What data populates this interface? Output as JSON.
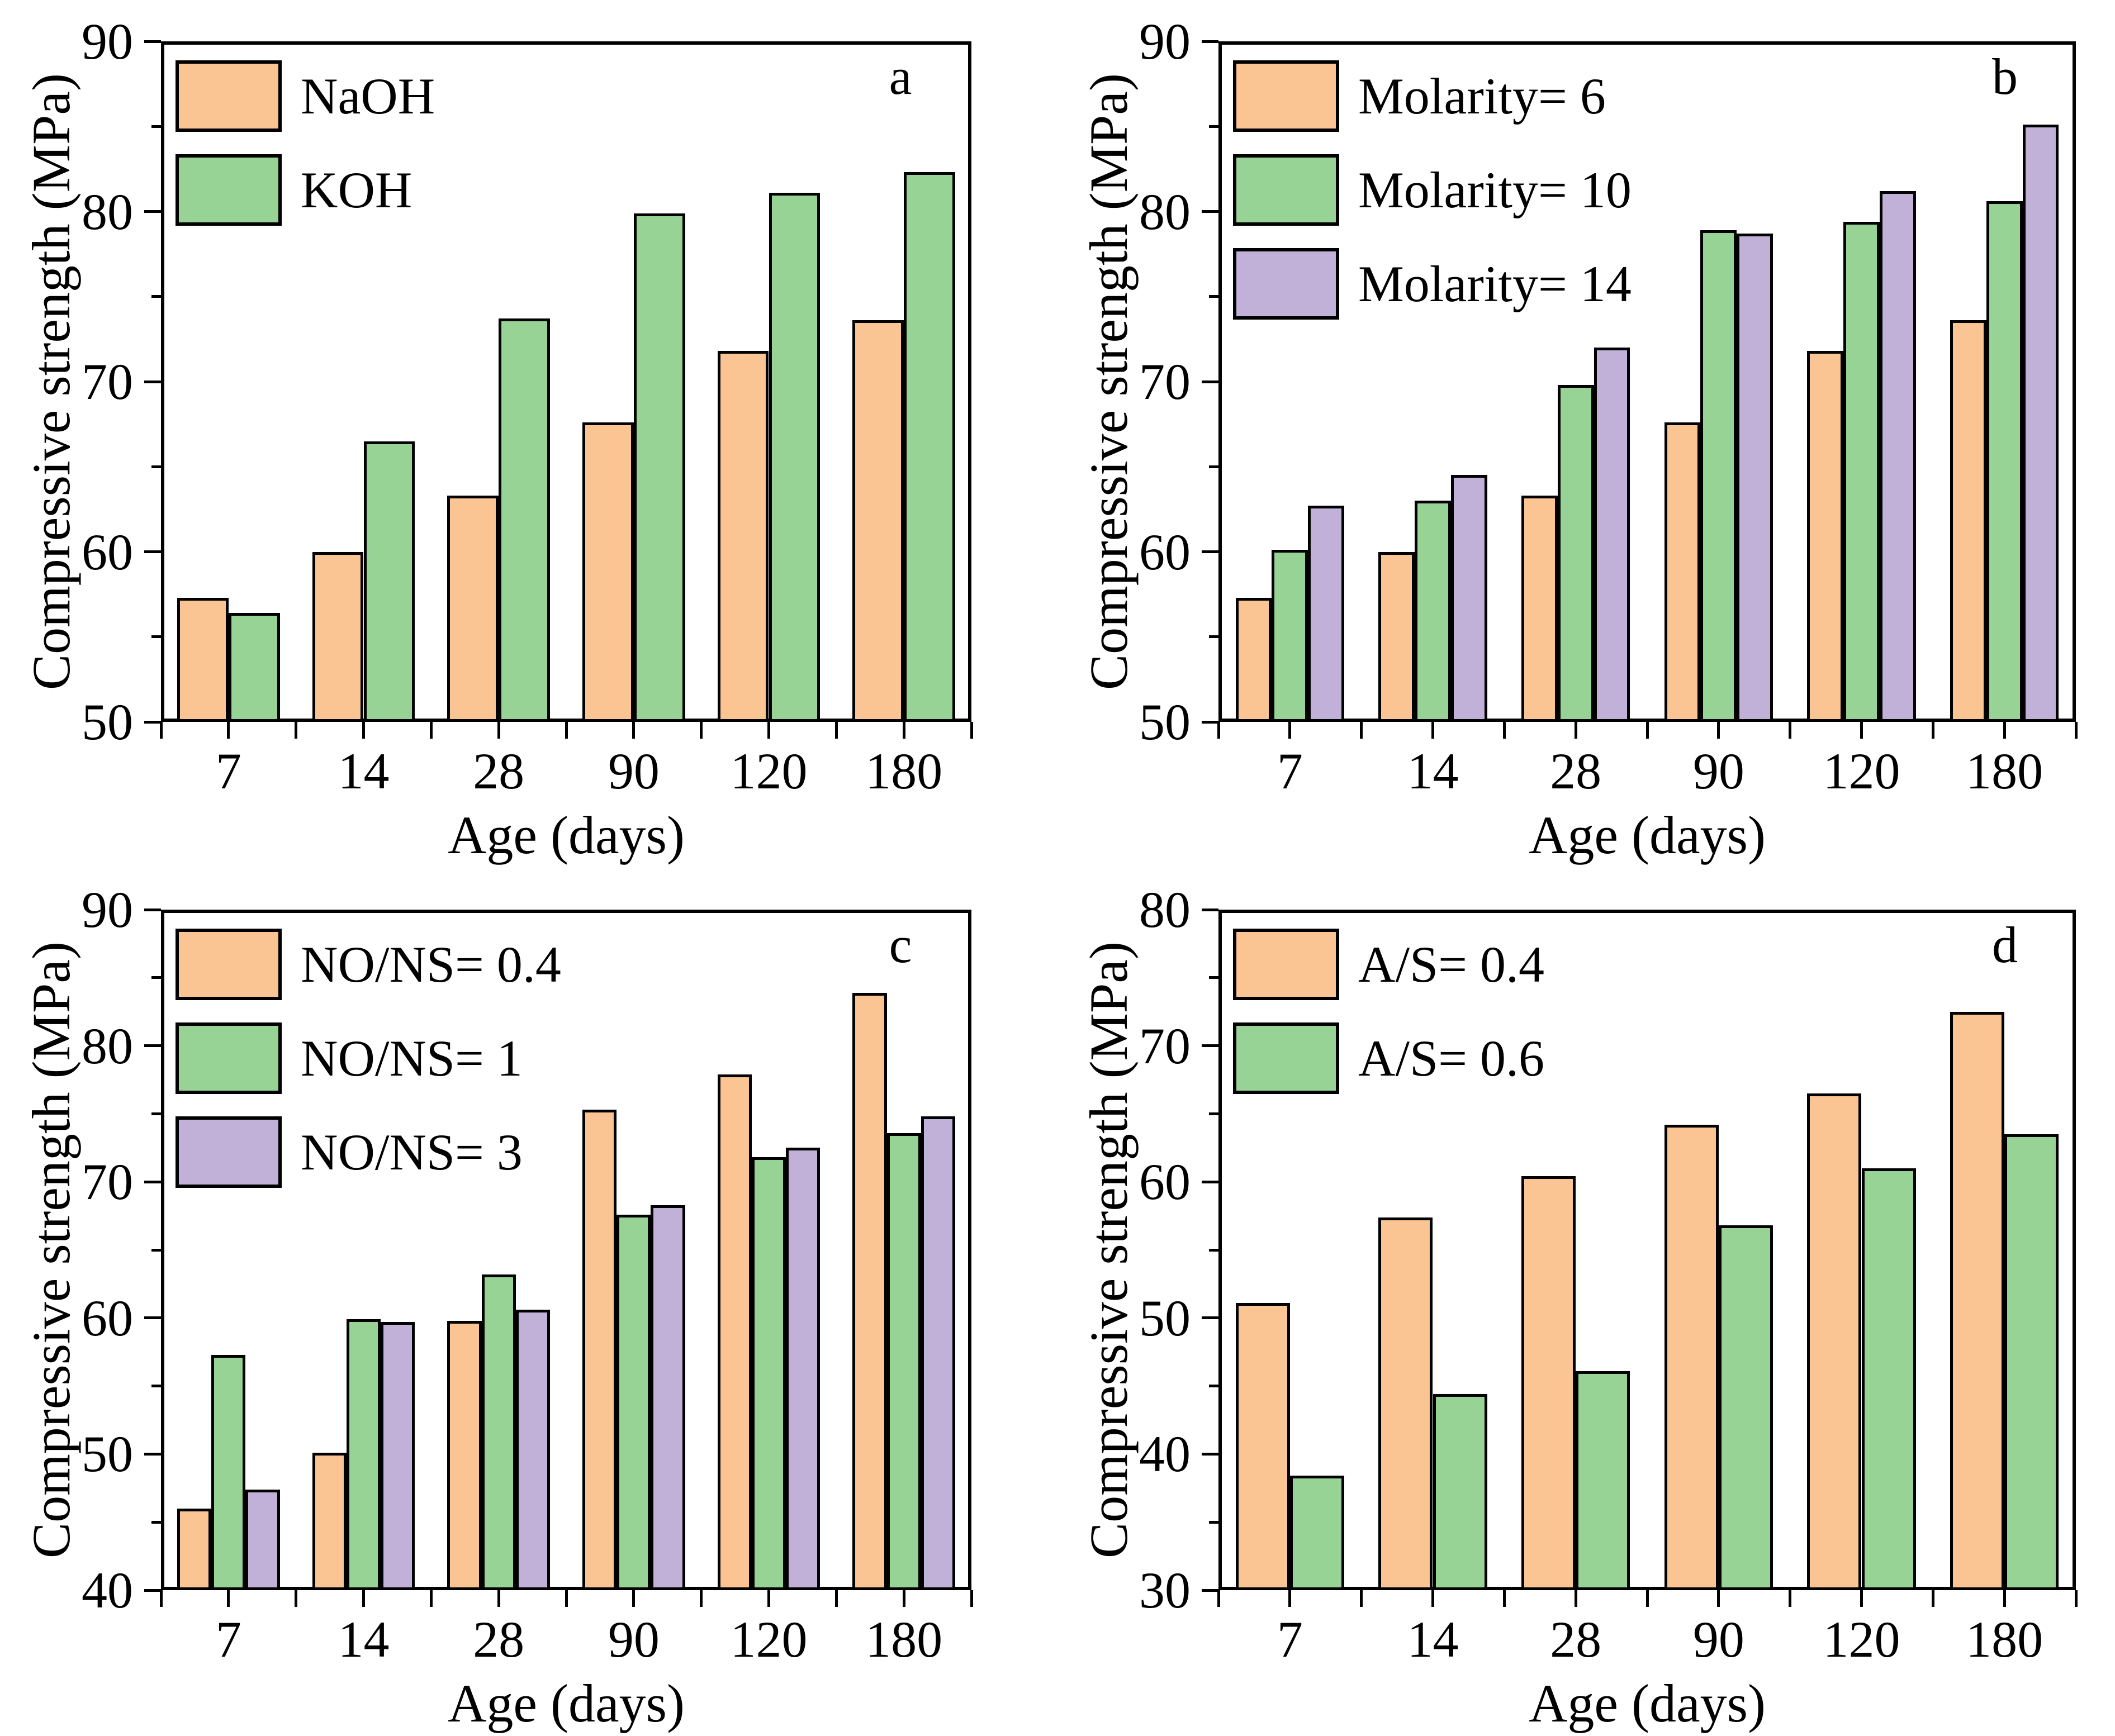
{
  "figure": {
    "background": "#ffffff",
    "xlabel": "Age (days)",
    "ylabel": "Compressive strength (MPa)"
  },
  "chart_data": [
    {
      "panel": "a",
      "type": "bar",
      "xlabel": "Age (days)",
      "ylabel": "Compressive strength (MPa)",
      "categories": [
        "7",
        "14",
        "28",
        "90",
        "120",
        "180"
      ],
      "ylim": [
        50,
        90
      ],
      "ytick_major": 10,
      "ytick_minor": 5,
      "grid": false,
      "legend_position": "top-left-inside",
      "series": [
        {
          "name": "NaOH",
          "color": "#FBC493",
          "values": [
            57.3,
            60.0,
            63.3,
            67.6,
            71.8,
            73.6
          ]
        },
        {
          "name": "KOH",
          "color": "#98D396",
          "values": [
            56.4,
            66.5,
            73.7,
            79.9,
            81.1,
            82.3
          ]
        }
      ]
    },
    {
      "panel": "b",
      "type": "bar",
      "xlabel": "Age (days)",
      "ylabel": "Compressive strength (MPa)",
      "categories": [
        "7",
        "14",
        "28",
        "90",
        "120",
        "180"
      ],
      "ylim": [
        50,
        90
      ],
      "ytick_major": 10,
      "ytick_minor": 5,
      "grid": false,
      "legend_position": "top-left-inside",
      "series": [
        {
          "name": "Molarity= 6",
          "color": "#FBC493",
          "values": [
            57.3,
            60.0,
            63.3,
            67.6,
            71.8,
            73.6
          ]
        },
        {
          "name": "Molarity= 10",
          "color": "#98D396",
          "values": [
            60.1,
            63.0,
            69.8,
            78.9,
            79.4,
            80.6
          ]
        },
        {
          "name": "Molarity= 14",
          "color": "#C1B1D8",
          "values": [
            62.7,
            64.5,
            72.0,
            78.7,
            81.2,
            85.1
          ]
        }
      ]
    },
    {
      "panel": "c",
      "type": "bar",
      "xlabel": "Age (days)",
      "ylabel": "Compressive strength (MPa)",
      "categories": [
        "7",
        "14",
        "28",
        "90",
        "120",
        "180"
      ],
      "ylim": [
        40,
        90
      ],
      "ytick_major": 10,
      "ytick_minor": 5,
      "grid": false,
      "legend_position": "top-left-inside",
      "series": [
        {
          "name": "NO/NS= 0.4",
          "color": "#FBC493",
          "values": [
            46.0,
            50.1,
            59.8,
            75.3,
            77.9,
            83.9
          ]
        },
        {
          "name": "NO/NS= 1",
          "color": "#98D396",
          "values": [
            57.3,
            59.9,
            63.2,
            67.6,
            71.8,
            73.6
          ]
        },
        {
          "name": "NO/NS= 3",
          "color": "#C1B1D8",
          "values": [
            47.4,
            59.7,
            60.6,
            68.3,
            72.5,
            74.8
          ]
        }
      ]
    },
    {
      "panel": "d",
      "type": "bar",
      "xlabel": "Age (days)",
      "ylabel": "Compressive strength (MPa)",
      "categories": [
        "7",
        "14",
        "28",
        "90",
        "120",
        "180"
      ],
      "ylim": [
        30,
        80
      ],
      "ytick_major": 10,
      "ytick_minor": 5,
      "grid": false,
      "legend_position": "top-left-inside",
      "series": [
        {
          "name": "A/S= 0.4",
          "color": "#FBC493",
          "values": [
            51.1,
            57.4,
            60.4,
            64.2,
            66.5,
            72.5
          ]
        },
        {
          "name": "A/S= 0.6",
          "color": "#98D396",
          "values": [
            38.4,
            44.4,
            46.1,
            56.8,
            61.0,
            63.5
          ]
        }
      ]
    }
  ]
}
